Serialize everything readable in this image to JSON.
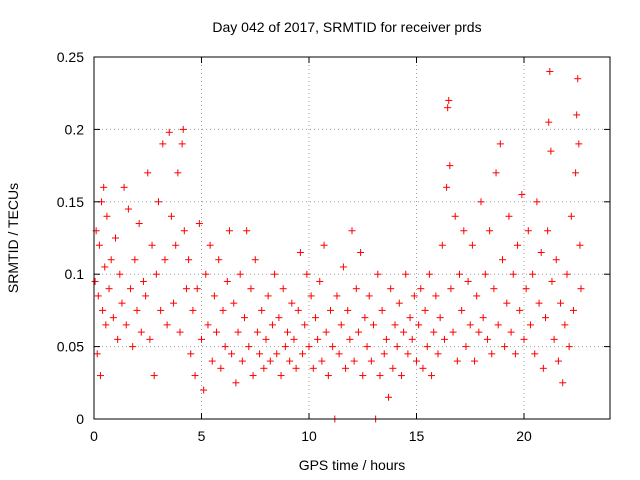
{
  "chart_data": {
    "type": "scatter",
    "title": "Day 042 of 2017, SRMTID for receiver prds",
    "xlabel": "GPS time / hours",
    "ylabel": "SRMTID / TECUs",
    "xlim": [
      0,
      24
    ],
    "ylim": [
      0,
      0.25
    ],
    "xticks": [
      0,
      5,
      10,
      15,
      20
    ],
    "xtick_labels": [
      "0",
      "5",
      "10",
      "15",
      "20"
    ],
    "yticks": [
      0,
      0.05,
      0.1,
      0.15,
      0.2,
      0.25
    ],
    "ytick_labels": [
      "0",
      "0.05",
      "0.1",
      "0.15",
      "0.2",
      "0.25"
    ],
    "grid": true,
    "marker": "+",
    "series": [
      {
        "name": "SRMTID",
        "color": "#ff0000",
        "points": [
          [
            0.05,
            0.095
          ],
          [
            0.1,
            0.13
          ],
          [
            0.15,
            0.045
          ],
          [
            0.2,
            0.085
          ],
          [
            0.25,
            0.12
          ],
          [
            0.3,
            0.03
          ],
          [
            0.35,
            0.15
          ],
          [
            0.4,
            0.075
          ],
          [
            0.45,
            0.16
          ],
          [
            0.5,
            0.105
          ],
          [
            0.55,
            0.065
          ],
          [
            0.6,
            0.14
          ],
          [
            0.7,
            0.09
          ],
          [
            0.8,
            0.11
          ],
          [
            0.9,
            0.07
          ],
          [
            1.0,
            0.125
          ],
          [
            1.1,
            0.055
          ],
          [
            1.2,
            0.1
          ],
          [
            1.3,
            0.08
          ],
          [
            1.4,
            0.16
          ],
          [
            1.5,
            0.065
          ],
          [
            1.6,
            0.145
          ],
          [
            1.7,
            0.09
          ],
          [
            1.8,
            0.05
          ],
          [
            1.9,
            0.11
          ],
          [
            2.0,
            0.075
          ],
          [
            2.1,
            0.135
          ],
          [
            2.2,
            0.06
          ],
          [
            2.3,
            0.095
          ],
          [
            2.4,
            0.085
          ],
          [
            2.5,
            0.17
          ],
          [
            2.6,
            0.055
          ],
          [
            2.7,
            0.12
          ],
          [
            2.8,
            0.03
          ],
          [
            2.9,
            0.1
          ],
          [
            3.0,
            0.15
          ],
          [
            3.1,
            0.075
          ],
          [
            3.2,
            0.19
          ],
          [
            3.3,
            0.11
          ],
          [
            3.4,
            0.065
          ],
          [
            3.5,
            0.198
          ],
          [
            3.6,
            0.14
          ],
          [
            3.7,
            0.08
          ],
          [
            3.8,
            0.12
          ],
          [
            3.9,
            0.17
          ],
          [
            4.0,
            0.06
          ],
          [
            4.1,
            0.19
          ],
          [
            4.15,
            0.2
          ],
          [
            4.2,
            0.13
          ],
          [
            4.3,
            0.09
          ],
          [
            4.4,
            0.11
          ],
          [
            4.5,
            0.045
          ],
          [
            4.6,
            0.075
          ],
          [
            4.7,
            0.03
          ],
          [
            4.8,
            0.09
          ],
          [
            4.9,
            0.135
          ],
          [
            5.0,
            0.055
          ],
          [
            5.1,
            0.02
          ],
          [
            5.2,
            0.1
          ],
          [
            5.3,
            0.065
          ],
          [
            5.4,
            0.12
          ],
          [
            5.5,
            0.04
          ],
          [
            5.6,
            0.085
          ],
          [
            5.7,
            0.06
          ],
          [
            5.8,
            0.11
          ],
          [
            5.9,
            0.035
          ],
          [
            6.0,
            0.075
          ],
          [
            6.1,
            0.05
          ],
          [
            6.2,
            0.095
          ],
          [
            6.3,
            0.13
          ],
          [
            6.4,
            0.045
          ],
          [
            6.5,
            0.08
          ],
          [
            6.6,
            0.025
          ],
          [
            6.7,
            0.06
          ],
          [
            6.8,
            0.1
          ],
          [
            6.9,
            0.04
          ],
          [
            7.0,
            0.07
          ],
          [
            7.1,
            0.13
          ],
          [
            7.2,
            0.05
          ],
          [
            7.3,
            0.09
          ],
          [
            7.4,
            0.03
          ],
          [
            7.5,
            0.11
          ],
          [
            7.6,
            0.06
          ],
          [
            7.7,
            0.045
          ],
          [
            7.8,
            0.075
          ],
          [
            7.9,
            0.035
          ],
          [
            8.0,
            0.055
          ],
          [
            8.1,
            0.085
          ],
          [
            8.2,
            0.04
          ],
          [
            8.3,
            0.065
          ],
          [
            8.4,
            0.1
          ],
          [
            8.5,
            0.045
          ],
          [
            8.6,
            0.07
          ],
          [
            8.7,
            0.03
          ],
          [
            8.8,
            0.09
          ],
          [
            8.9,
            0.05
          ],
          [
            9.0,
            0.06
          ],
          [
            9.1,
            0.04
          ],
          [
            9.2,
            0.08
          ],
          [
            9.3,
            0.055
          ],
          [
            9.4,
            0.035
          ],
          [
            9.5,
            0.075
          ],
          [
            9.6,
            0.115
          ],
          [
            9.7,
            0.045
          ],
          [
            9.8,
            0.065
          ],
          [
            9.9,
            0.1
          ],
          [
            10.0,
            0.05
          ],
          [
            10.1,
            0.085
          ],
          [
            10.2,
            0.035
          ],
          [
            10.3,
            0.07
          ],
          [
            10.4,
            0.055
          ],
          [
            10.5,
            0.095
          ],
          [
            10.6,
            0.04
          ],
          [
            10.7,
            0.12
          ],
          [
            10.8,
            0.06
          ],
          [
            10.9,
            0.03
          ],
          [
            11.0,
            0.075
          ],
          [
            11.1,
            0.05
          ],
          [
            11.2,
            0.0
          ],
          [
            11.3,
            0.085
          ],
          [
            11.4,
            0.045
          ],
          [
            11.5,
            0.065
          ],
          [
            11.6,
            0.105
          ],
          [
            11.7,
            0.035
          ],
          [
            11.8,
            0.075
          ],
          [
            11.9,
            0.055
          ],
          [
            12.0,
            0.13
          ],
          [
            12.1,
            0.04
          ],
          [
            12.2,
            0.09
          ],
          [
            12.3,
            0.06
          ],
          [
            12.4,
            0.115
          ],
          [
            12.5,
            0.03
          ],
          [
            12.6,
            0.07
          ],
          [
            12.7,
            0.05
          ],
          [
            12.8,
            0.085
          ],
          [
            12.9,
            0.04
          ],
          [
            13.0,
            0.065
          ],
          [
            13.1,
            0.0
          ],
          [
            13.2,
            0.1
          ],
          [
            13.3,
            0.03
          ],
          [
            13.4,
            0.075
          ],
          [
            13.5,
            0.045
          ],
          [
            13.6,
            0.055
          ],
          [
            13.7,
            0.015
          ],
          [
            13.8,
            0.09
          ],
          [
            13.9,
            0.035
          ],
          [
            14.0,
            0.065
          ],
          [
            14.1,
            0.05
          ],
          [
            14.2,
            0.08
          ],
          [
            14.3,
            0.03
          ],
          [
            14.4,
            0.06
          ],
          [
            14.5,
            0.1
          ],
          [
            14.6,
            0.045
          ],
          [
            14.7,
            0.07
          ],
          [
            14.8,
            0.055
          ],
          [
            14.9,
            0.085
          ],
          [
            15.0,
            0.04
          ],
          [
            15.1,
            0.065
          ],
          [
            15.2,
            0.09
          ],
          [
            15.3,
            0.035
          ],
          [
            15.4,
            0.075
          ],
          [
            15.5,
            0.05
          ],
          [
            15.6,
            0.1
          ],
          [
            15.7,
            0.03
          ],
          [
            15.8,
            0.06
          ],
          [
            15.9,
            0.085
          ],
          [
            16.0,
            0.045
          ],
          [
            16.1,
            0.07
          ],
          [
            16.2,
            0.12
          ],
          [
            16.3,
            0.055
          ],
          [
            16.4,
            0.16
          ],
          [
            16.45,
            0.215
          ],
          [
            16.5,
            0.22
          ],
          [
            16.55,
            0.175
          ],
          [
            16.6,
            0.09
          ],
          [
            16.7,
            0.06
          ],
          [
            16.8,
            0.14
          ],
          [
            16.9,
            0.04
          ],
          [
            17.0,
            0.1
          ],
          [
            17.1,
            0.075
          ],
          [
            17.2,
            0.13
          ],
          [
            17.3,
            0.05
          ],
          [
            17.4,
            0.095
          ],
          [
            17.5,
            0.065
          ],
          [
            17.6,
            0.12
          ],
          [
            17.7,
            0.04
          ],
          [
            17.8,
            0.085
          ],
          [
            17.9,
            0.06
          ],
          [
            18.0,
            0.15
          ],
          [
            18.1,
            0.07
          ],
          [
            18.2,
            0.1
          ],
          [
            18.3,
            0.055
          ],
          [
            18.4,
            0.13
          ],
          [
            18.5,
            0.045
          ],
          [
            18.6,
            0.09
          ],
          [
            18.7,
            0.17
          ],
          [
            18.8,
            0.065
          ],
          [
            18.9,
            0.19
          ],
          [
            19.0,
            0.11
          ],
          [
            19.1,
            0.05
          ],
          [
            19.2,
            0.08
          ],
          [
            19.3,
            0.14
          ],
          [
            19.4,
            0.06
          ],
          [
            19.5,
            0.1
          ],
          [
            19.6,
            0.045
          ],
          [
            19.7,
            0.12
          ],
          [
            19.8,
            0.075
          ],
          [
            19.9,
            0.155
          ],
          [
            20.0,
            0.055
          ],
          [
            20.1,
            0.09
          ],
          [
            20.2,
            0.13
          ],
          [
            20.3,
            0.065
          ],
          [
            20.4,
            0.1
          ],
          [
            20.5,
            0.045
          ],
          [
            20.6,
            0.15
          ],
          [
            20.7,
            0.08
          ],
          [
            20.8,
            0.115
          ],
          [
            20.9,
            0.035
          ],
          [
            21.0,
            0.07
          ],
          [
            21.1,
            0.13
          ],
          [
            21.15,
            0.205
          ],
          [
            21.2,
            0.24
          ],
          [
            21.25,
            0.185
          ],
          [
            21.3,
            0.095
          ],
          [
            21.4,
            0.055
          ],
          [
            21.5,
            0.11
          ],
          [
            21.6,
            0.04
          ],
          [
            21.7,
            0.08
          ],
          [
            21.8,
            0.025
          ],
          [
            21.9,
            0.065
          ],
          [
            22.0,
            0.1
          ],
          [
            22.1,
            0.05
          ],
          [
            22.2,
            0.14
          ],
          [
            22.3,
            0.075
          ],
          [
            22.4,
            0.17
          ],
          [
            22.45,
            0.21
          ],
          [
            22.5,
            0.235
          ],
          [
            22.55,
            0.19
          ],
          [
            22.6,
            0.12
          ],
          [
            22.65,
            0.09
          ]
        ]
      }
    ]
  }
}
